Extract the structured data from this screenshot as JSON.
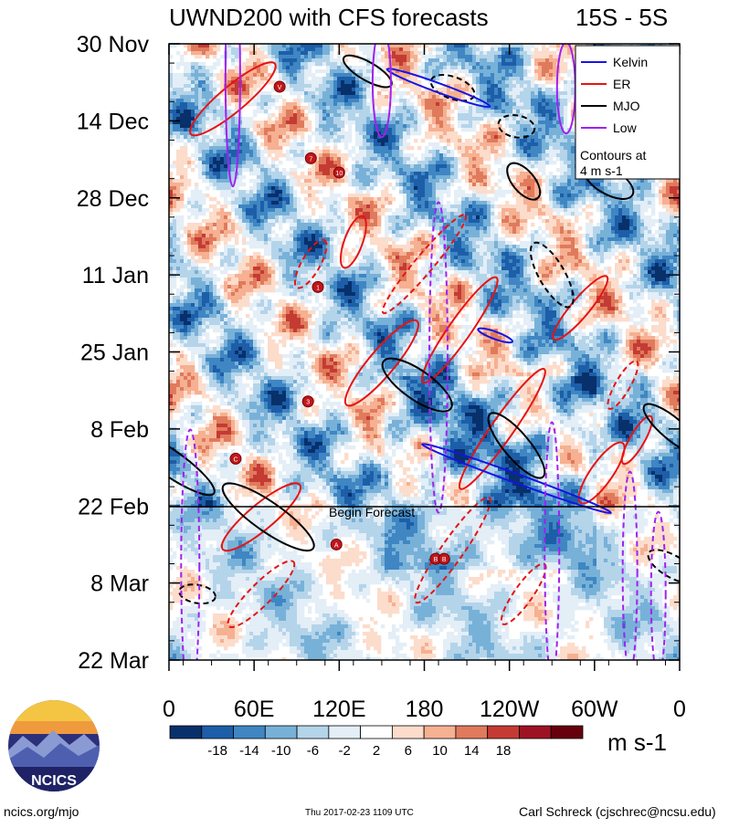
{
  "chart_data": {
    "type": "heatmap",
    "title": "UWND200 with CFS forecasts",
    "region": "15S - 5S",
    "y_axis": {
      "tick_labels": [
        "30 Nov",
        "14 Dec",
        "28 Dec",
        "11 Jan",
        "25 Jan",
        "8 Feb",
        "22 Feb",
        "8 Mar",
        "22 Mar"
      ],
      "range": [
        "30 Nov",
        "22 Mar"
      ]
    },
    "x_axis": {
      "tick_labels": [
        "0",
        "60E",
        "120E",
        "180",
        "120W",
        "60W",
        "0"
      ],
      "range_degrees_east": [
        0,
        360
      ]
    },
    "forecast_start": "22 Feb",
    "forecast_label": "Begin Forecast",
    "legend": {
      "placement": "top-right",
      "entries": [
        {
          "name": "Kelvin",
          "color": "#1414e6"
        },
        {
          "name": "ER",
          "color": "#e61414"
        },
        {
          "name": "MJO",
          "color": "#000000"
        },
        {
          "name": "Low",
          "color": "#a020f0"
        }
      ],
      "contour_note_line1": "Contours at",
      "contour_note_line2": "4 m s-1"
    },
    "colorbar": {
      "levels": [
        -18,
        -14,
        -10,
        -6,
        -2,
        2,
        6,
        10,
        14,
        18
      ],
      "labels": [
        "-18",
        "-14",
        "-10",
        "-6",
        "-2",
        "2",
        "6",
        "10",
        "14",
        "18"
      ],
      "colors": [
        "#08306b",
        "#1d5ea8",
        "#3f86c3",
        "#78b1d8",
        "#b4d4ea",
        "#e3eef7",
        "#ffffff",
        "#fcdccb",
        "#f6b092",
        "#e07a5c",
        "#c43b34",
        "#9e1323",
        "#67000d"
      ],
      "units": "m s-1"
    },
    "tc_markers": [
      {
        "label": "V",
        "lon": 78,
        "date_index": 3
      },
      {
        "label": "7",
        "lon": 100,
        "date_index": 8
      },
      {
        "label": "10",
        "lon": 120,
        "date_index": 9
      },
      {
        "label": "1",
        "lon": 105,
        "date_index": 17
      },
      {
        "label": "3",
        "lon": 98,
        "date_index": 25
      },
      {
        "label": "C",
        "lon": 47,
        "date_index": 29
      },
      {
        "label": "A",
        "lon": 118,
        "date_index": 35
      },
      {
        "label": "B",
        "lon": 188,
        "date_index": 36
      },
      {
        "label": "B",
        "lon": 194,
        "date_index": 36
      }
    ]
  },
  "logo_text": "NCICS",
  "footer": {
    "left": "ncics.org/mjo",
    "center": "Thu 2017-02-23 1109 UTC",
    "right": "Carl Schreck (cjschrec@ncsu.edu)"
  }
}
